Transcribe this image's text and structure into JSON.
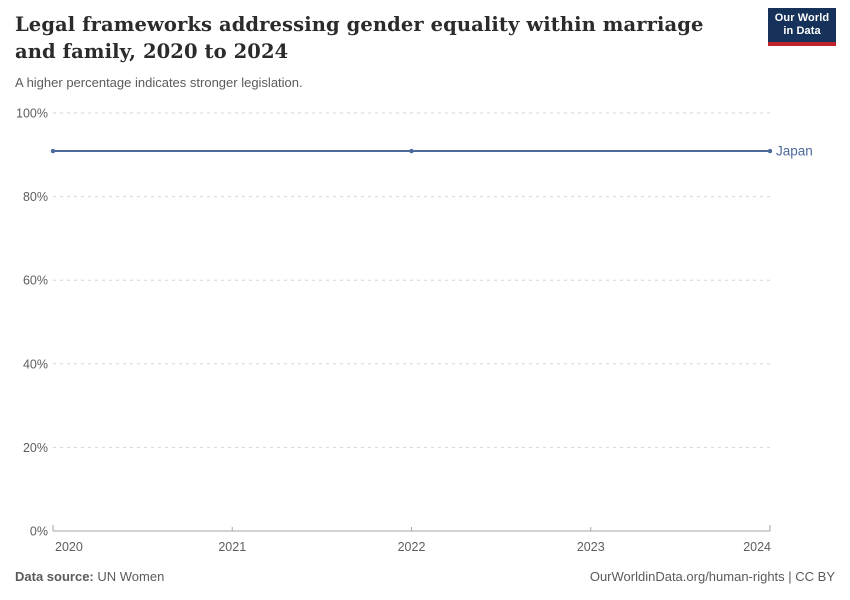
{
  "header": {
    "title": "Legal frameworks addressing gender equality within marriage and family, 2020 to 2024",
    "subtitle": "A higher percentage indicates stronger legislation.",
    "logo_line1": "Our World",
    "logo_line2": "in Data"
  },
  "chart_data": {
    "type": "line",
    "title": "Legal frameworks addressing gender equality within marriage and family, 2020 to 2024",
    "xlabel": "",
    "ylabel": "",
    "x": {
      "range": [
        2020,
        2024
      ],
      "ticks": [
        2020,
        2021,
        2022,
        2023,
        2024
      ]
    },
    "y": {
      "range": [
        0,
        100
      ],
      "ticks": [
        0,
        20,
        40,
        60,
        80,
        100
      ],
      "suffix": "%",
      "grid": "dashed-horizontal"
    },
    "series": [
      {
        "name": "Japan",
        "color": "#4C6A9C",
        "x": [
          2020,
          2022,
          2024
        ],
        "values": [
          90.9,
          90.9,
          90.9
        ]
      }
    ],
    "legend_position": "label-at-line-end"
  },
  "footer": {
    "source_label": "Data source:",
    "source_value": " UN Women",
    "rights": "OurWorldinData.org/human-rights | CC BY"
  },
  "colors": {
    "accent_line": "#4C6A9C",
    "grid": "#d2d6dd",
    "axis": "#a5a5a5",
    "tick_label": "#5e5e5e",
    "logo_bg": "#16325a",
    "logo_red": "#c0232c"
  }
}
